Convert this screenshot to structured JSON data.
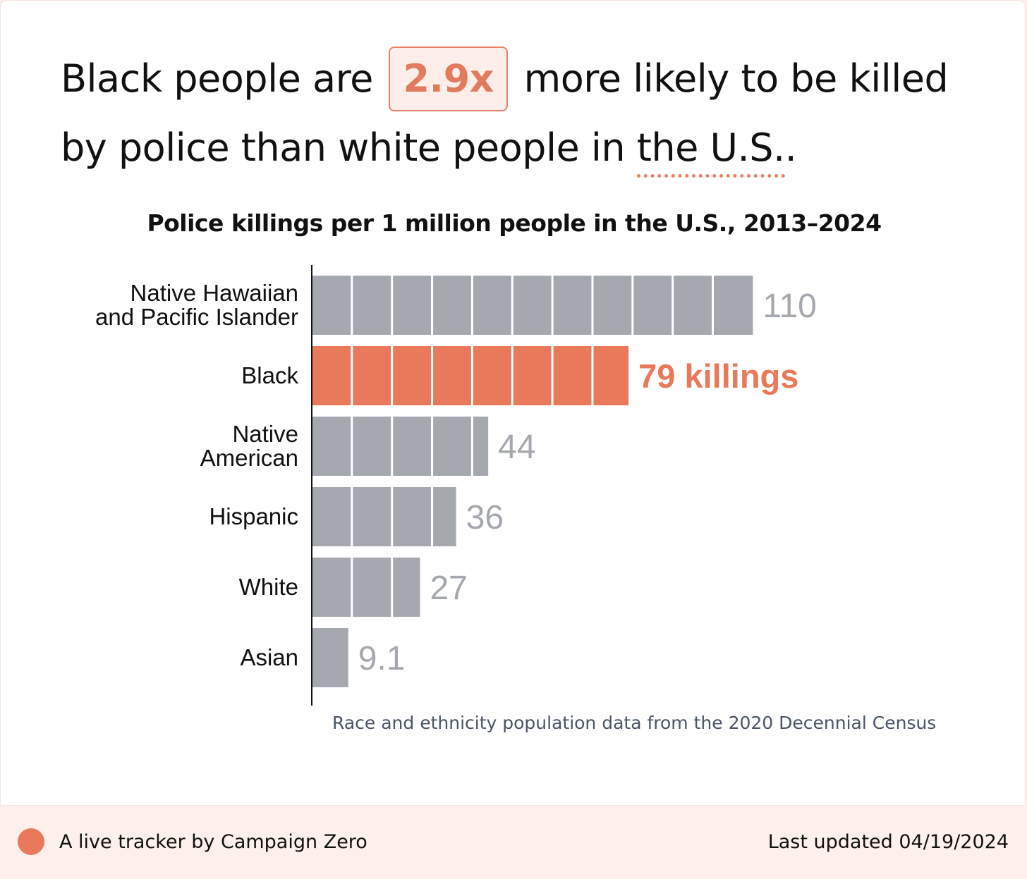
{
  "headline": {
    "part1": "Black people are",
    "ratio": "2.9x",
    "part2": "more likely to be killed by police than white people in",
    "place": "the U.S.",
    "end": "."
  },
  "chart_data": {
    "type": "bar",
    "orientation": "horizontal",
    "title": "Police killings per 1 million people in the U.S., 2013–2024",
    "unit_label": "killings",
    "categories": [
      [
        "Native Hawaiian",
        "and Pacific Islander"
      ],
      [
        "Black"
      ],
      [
        "Native",
        "American"
      ],
      [
        "Hispanic"
      ],
      [
        "White"
      ],
      [
        "Asian"
      ]
    ],
    "values": [
      110,
      79,
      44,
      36,
      27,
      9.1
    ],
    "value_labels": [
      "110",
      "79 killings",
      "44",
      "36",
      "27",
      "9.1"
    ],
    "highlight_index": 1,
    "segment_size": 10,
    "colors": {
      "default": "#a5a8af",
      "highlight": "#e8795a",
      "default_label": "#a5a8af",
      "highlight_label": "#e8795a",
      "axis": "#111111"
    }
  },
  "footnote": "Race and ethnicity population data from the 2020 Decennial Census",
  "footer": {
    "tracker": "A live tracker by Campaign Zero",
    "updated": "Last updated 04/19/2024",
    "dot_color": "#e8795a"
  }
}
